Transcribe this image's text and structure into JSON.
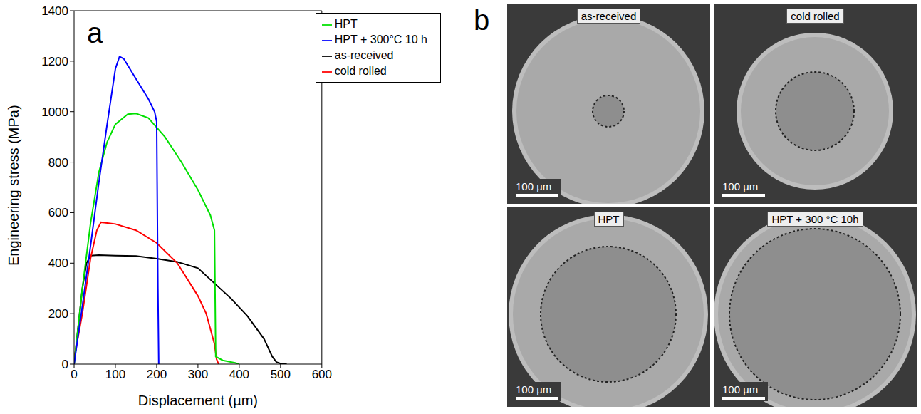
{
  "chart_data": {
    "type": "line",
    "panel_label": "a",
    "x_label": "Displacement (µm)",
    "y_label": "Engineering stress (MPa)",
    "xlim": [
      0,
      600
    ],
    "xticks": [
      0,
      100,
      200,
      300,
      400,
      500,
      600
    ],
    "ylim": [
      0,
      1400
    ],
    "yticks": [
      0,
      200,
      400,
      600,
      800,
      1000,
      1200,
      1400
    ],
    "grid": false,
    "legend": "top right",
    "series": [
      {
        "name": "as-received",
        "color": "#000000",
        "x": [
          0,
          10,
          20,
          30,
          40,
          60,
          100,
          150,
          200,
          250,
          300,
          340,
          380,
          420,
          460,
          480,
          490,
          500,
          515
        ],
        "values": [
          0,
          150,
          300,
          400,
          430,
          432,
          430,
          428,
          418,
          405,
          380,
          320,
          260,
          190,
          100,
          30,
          8,
          2,
          0
        ]
      },
      {
        "name": "cold rolled",
        "color": "#ff0000",
        "x": [
          0,
          20,
          40,
          55,
          65,
          100,
          150,
          200,
          250,
          300,
          320,
          340,
          345,
          350
        ],
        "values": [
          20,
          200,
          420,
          530,
          562,
          555,
          530,
          480,
          400,
          270,
          200,
          80,
          20,
          0
        ]
      },
      {
        "name": "HPT",
        "color": "#00e000",
        "x": [
          0,
          20,
          40,
          60,
          80,
          100,
          130,
          150,
          180,
          220,
          260,
          300,
          330,
          340,
          343,
          360,
          390,
          400
        ],
        "values": [
          0,
          300,
          560,
          760,
          880,
          950,
          990,
          993,
          975,
          900,
          800,
          690,
          590,
          530,
          30,
          15,
          5,
          0
        ]
      },
      {
        "name": "HPT + 300°C 10 h",
        "color": "#0000ff",
        "x": [
          0,
          20,
          40,
          60,
          80,
          100,
          110,
          120,
          150,
          180,
          195,
          200,
          203,
          205
        ],
        "values": [
          0,
          230,
          470,
          720,
          950,
          1170,
          1218,
          1210,
          1130,
          1050,
          1000,
          960,
          300,
          0
        ]
      }
    ]
  },
  "image_panel": {
    "label": "b",
    "images": [
      {
        "title": "as-received",
        "scale_bar": "100 µm"
      },
      {
        "title": "cold rolled",
        "scale_bar": "100 µm"
      },
      {
        "title": "HPT",
        "scale_bar": "100 µm"
      },
      {
        "title": "HPT + 300 °C 10h",
        "scale_bar": "100 µm"
      }
    ]
  }
}
